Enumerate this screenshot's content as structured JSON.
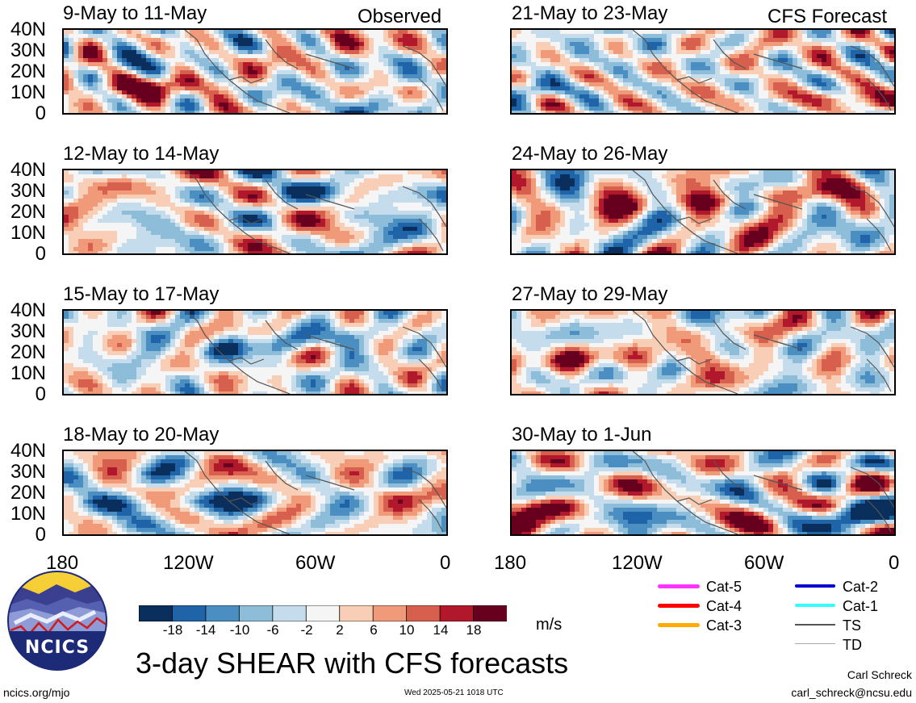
{
  "header": {
    "left_label": "Observed",
    "right_label": "CFS Forecast"
  },
  "panels": [
    {
      "title": "9-May to 11-May"
    },
    {
      "title": "12-May to 14-May"
    },
    {
      "title": "15-May to 17-May"
    },
    {
      "title": "18-May to 20-May"
    },
    {
      "title": "21-May to 23-May"
    },
    {
      "title": "24-May to 26-May"
    },
    {
      "title": "27-May to 29-May"
    },
    {
      "title": "30-May to 1-Jun"
    }
  ],
  "y_ticks": [
    "40N",
    "30N",
    "20N",
    "10N",
    "0"
  ],
  "x_ticks": [
    "180",
    "120W",
    "60W",
    "0"
  ],
  "colorbar": {
    "labels": [
      "-18",
      "-14",
      "-10",
      "-6",
      "-2",
      "2",
      "6",
      "10",
      "14",
      "18"
    ],
    "colors": [
      "#0a2f5c",
      "#1f63a8",
      "#4a8ec2",
      "#8ebdd9",
      "#c5dced",
      "#f5f5f5",
      "#f8cfb6",
      "#f09a79",
      "#d6604d",
      "#b2182b",
      "#67001f"
    ],
    "units": "m/s"
  },
  "track_legend": [
    {
      "label": "Cat-5",
      "color": "#ff33ff"
    },
    {
      "label": "Cat-4",
      "color": "#ff0000"
    },
    {
      "label": "Cat-3",
      "color": "#ffaa00"
    },
    {
      "label": "Cat-2",
      "color": "#0000cc"
    },
    {
      "label": "Cat-1",
      "color": "#33ffff"
    },
    {
      "label": "TS",
      "color": "#555555"
    },
    {
      "label": "TD",
      "color": "#aaaaaa"
    }
  ],
  "logo": {
    "text": "NCICS"
  },
  "footer": {
    "title": "3-day SHEAR with CFS forecasts",
    "url": "ncics.org/mjo",
    "timestamp": "Wed 2025-05-21 1018 UTC",
    "author": "Carl Schreck",
    "email": "carl_schreck@ncsu.edu"
  }
}
